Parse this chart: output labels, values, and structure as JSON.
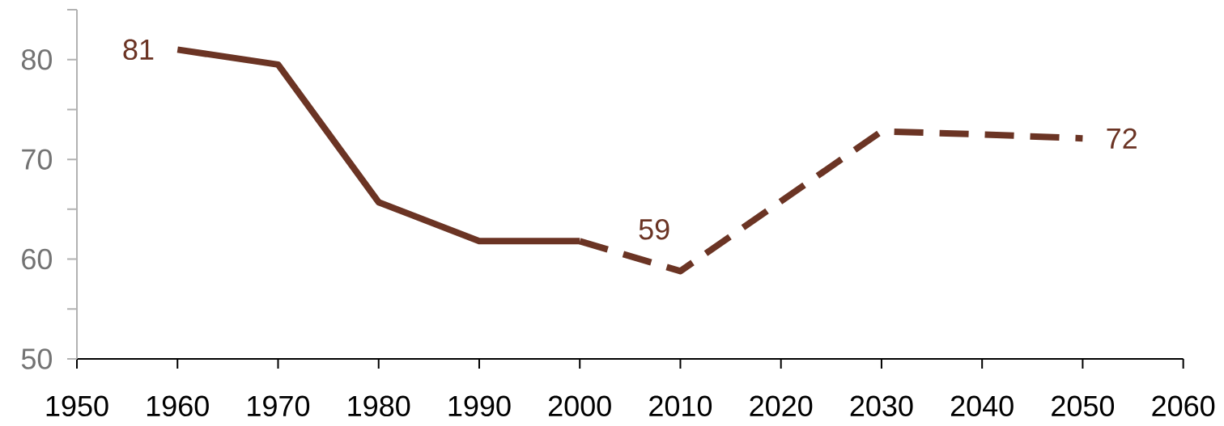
{
  "chart_data": {
    "type": "line",
    "series": [
      {
        "color": "#6b3424",
        "line_style": "solid",
        "x": [
          1960,
          1970,
          1980,
          1990,
          2000
        ],
        "values": [
          81.0,
          79.5,
          65.7,
          61.8,
          61.8
        ],
        "value_labels": [
          "81",
          null,
          null,
          null,
          null
        ]
      },
      {
        "color": "#6b3424",
        "line_style": "dashed",
        "x": [
          2000,
          2010,
          2020,
          2030,
          2040,
          2050
        ],
        "values": [
          61.8,
          58.8,
          65.8,
          72.8,
          72.5,
          72.1
        ],
        "value_labels": [
          null,
          "59",
          null,
          null,
          null,
          "72"
        ]
      }
    ],
    "xlim": [
      1950,
      2060
    ],
    "xticks": [
      1950,
      1960,
      1970,
      1980,
      1990,
      2000,
      2010,
      2020,
      2030,
      2040,
      2050,
      2060
    ],
    "ylim": [
      50,
      85
    ],
    "yticks": [
      50,
      {
        "value": 55,
        "label": null
      },
      60,
      {
        "value": 65,
        "label": null
      },
      70,
      {
        "value": 75,
        "label": null
      },
      80,
      {
        "value": 85,
        "label": null
      }
    ],
    "grid": false,
    "marker": "none"
  }
}
